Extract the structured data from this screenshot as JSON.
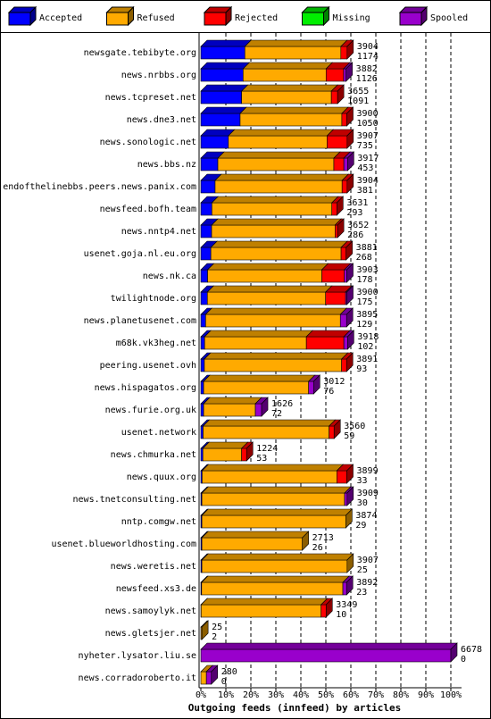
{
  "chart_data": {
    "type": "stacked-bar-3d",
    "xlabel": "Outgoing feeds (innfeed) by articles",
    "categories": [
      "newsgate.tebibyte.org",
      "news.nrbbs.org",
      "news.tcpreset.net",
      "news.dne3.net",
      "news.sonologic.net",
      "news.bbs.nz",
      "endofthelinebbs.peers.news.panix.com",
      "newsfeed.bofh.team",
      "news.nntp4.net",
      "usenet.goja.nl.eu.org",
      "news.nk.ca",
      "twilightnode.org",
      "news.planetusenet.com",
      "m68k.vk3heg.net",
      "peering.usenet.ovh",
      "news.hispagatos.org",
      "news.furie.org.uk",
      "usenet.network",
      "news.chmurka.net",
      "news.quux.org",
      "news.tnetconsulting.net",
      "nntp.comgw.net",
      "usenet.blueworldhosting.com",
      "news.weretis.net",
      "newsfeed.xs3.de",
      "news.samoylyk.net",
      "news.gletsjer.net",
      "nyheter.lysator.liu.se",
      "news.corradoroberto.it"
    ],
    "articles_total": [
      3904,
      3882,
      3655,
      3900,
      3907,
      3917,
      3904,
      3631,
      3652,
      3881,
      3903,
      3900,
      3895,
      3918,
      3891,
      3012,
      1626,
      3560,
      1224,
      3899,
      3909,
      3874,
      2713,
      3907,
      3892,
      3349,
      25,
      6678,
      280
    ],
    "articles_accepted": [
      1174,
      1126,
      1091,
      1050,
      735,
      453,
      381,
      293,
      286,
      268,
      178,
      175,
      129,
      102,
      93,
      76,
      72,
      59,
      53,
      33,
      30,
      29,
      26,
      25,
      23,
      10,
      2,
      0,
      0
    ],
    "series": [
      {
        "name": "Accepted",
        "color": "#0000ff",
        "values": [
          17.6,
          16.9,
          16.3,
          15.7,
          11.0,
          6.8,
          5.7,
          4.4,
          4.3,
          4.0,
          2.7,
          2.6,
          1.9,
          1.5,
          1.4,
          1.1,
          1.1,
          0.9,
          0.8,
          0.5,
          0.4,
          0.4,
          0.4,
          0.4,
          0.3,
          0.1,
          0,
          0,
          0
        ]
      },
      {
        "name": "Refused",
        "color": "#ffaa00",
        "values": [
          38.4,
          33.2,
          35.9,
          40.7,
          39.5,
          46.4,
          50.8,
          48.0,
          49.4,
          52.1,
          45.7,
          47.3,
          53.9,
          40.7,
          54.9,
          42.0,
          20.7,
          50.4,
          15.5,
          53.9,
          57.1,
          57.6,
          40.2,
          58.1,
          56.5,
          48.0,
          0.4,
          0,
          2.2
        ]
      },
      {
        "name": "Rejected",
        "color": "#ff0000",
        "values": [
          2.5,
          7,
          2.5,
          2,
          8,
          4,
          2,
          2,
          1,
          2,
          9,
          8,
          0,
          15,
          2,
          0,
          0,
          2,
          2,
          4,
          0,
          0,
          0,
          0,
          0,
          2,
          0,
          0,
          0
        ]
      },
      {
        "name": "Missing",
        "color": "#00ee00",
        "values": [
          0,
          0,
          0,
          0,
          0,
          0,
          0,
          0,
          0,
          0,
          0,
          0,
          0,
          0,
          0,
          0,
          0,
          0,
          0,
          0,
          0,
          0,
          0,
          0,
          0,
          0,
          0,
          0,
          0
        ]
      },
      {
        "name": "Spooled",
        "color": "#9900cc",
        "values": [
          0,
          1,
          0,
          0,
          0,
          1.5,
          0,
          0,
          0,
          0,
          1,
          0.5,
          2.5,
          1.5,
          0,
          2,
          2.5,
          0,
          0,
          0,
          1,
          0,
          0,
          0,
          1.5,
          0,
          0,
          100,
          2
        ]
      }
    ],
    "xlim": [
      0,
      100
    ],
    "xticks": [
      {
        "value": 0,
        "label": "0%"
      },
      {
        "value": 10,
        "label": "10%"
      },
      {
        "value": 20,
        "label": "20%"
      },
      {
        "value": 30,
        "label": "30%"
      },
      {
        "value": 40,
        "label": "40%"
      },
      {
        "value": 50,
        "label": "50%"
      },
      {
        "value": 60,
        "label": "60%"
      },
      {
        "value": 70,
        "label": "70%"
      },
      {
        "value": 80,
        "label": "80%"
      },
      {
        "value": 90,
        "label": "90%"
      },
      {
        "value": 100,
        "label": "100%"
      }
    ],
    "grid": true,
    "legend": "top"
  }
}
